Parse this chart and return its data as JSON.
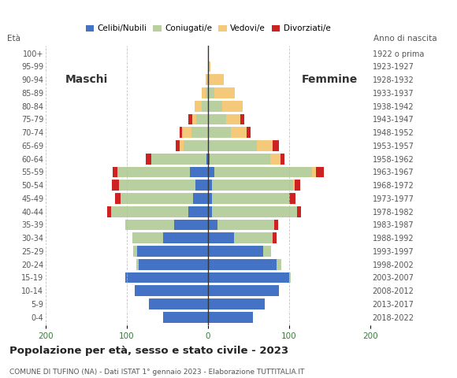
{
  "age_groups": [
    "0-4",
    "5-9",
    "10-14",
    "15-19",
    "20-24",
    "25-29",
    "30-34",
    "35-39",
    "40-44",
    "45-49",
    "50-54",
    "55-59",
    "60-64",
    "65-69",
    "70-74",
    "75-79",
    "80-84",
    "85-89",
    "90-94",
    "95-99",
    "100+"
  ],
  "birth_years": [
    "2018-2022",
    "2013-2017",
    "2008-2012",
    "2003-2007",
    "1998-2002",
    "1993-1997",
    "1988-1992",
    "1983-1987",
    "1978-1982",
    "1973-1977",
    "1968-1972",
    "1963-1967",
    "1958-1962",
    "1953-1957",
    "1948-1952",
    "1943-1947",
    "1938-1942",
    "1933-1937",
    "1928-1932",
    "1923-1927",
    "1922 o prima"
  ],
  "male": {
    "celibi": [
      55,
      73,
      90,
      102,
      85,
      87,
      55,
      42,
      24,
      18,
      15,
      22,
      2,
      0,
      0,
      0,
      0,
      0,
      0,
      0,
      0
    ],
    "coniugati": [
      0,
      0,
      0,
      0,
      3,
      5,
      38,
      60,
      95,
      90,
      95,
      90,
      68,
      30,
      20,
      14,
      8,
      3,
      1,
      0,
      0
    ],
    "vedovi": [
      0,
      0,
      0,
      0,
      0,
      0,
      0,
      0,
      0,
      0,
      0,
      0,
      0,
      5,
      12,
      5,
      8,
      5,
      2,
      0,
      0
    ],
    "divorziati": [
      0,
      0,
      0,
      0,
      0,
      0,
      0,
      0,
      5,
      7,
      8,
      5,
      7,
      5,
      3,
      5,
      0,
      0,
      0,
      0,
      0
    ]
  },
  "female": {
    "celibi": [
      55,
      70,
      88,
      100,
      85,
      68,
      32,
      12,
      5,
      5,
      5,
      8,
      2,
      0,
      0,
      0,
      0,
      0,
      0,
      0,
      0
    ],
    "coniugati": [
      0,
      0,
      0,
      2,
      5,
      10,
      48,
      70,
      105,
      95,
      100,
      120,
      75,
      60,
      28,
      22,
      18,
      8,
      2,
      1,
      0
    ],
    "vedovi": [
      0,
      0,
      0,
      0,
      0,
      0,
      0,
      0,
      0,
      0,
      2,
      5,
      12,
      20,
      20,
      18,
      25,
      25,
      18,
      2,
      0
    ],
    "divorziati": [
      0,
      0,
      0,
      0,
      0,
      0,
      5,
      5,
      5,
      8,
      7,
      10,
      5,
      8,
      5,
      5,
      0,
      0,
      0,
      0,
      0
    ]
  },
  "colors": {
    "celibi": "#4472c4",
    "coniugati": "#b8cfa0",
    "vedovi": "#f5c97a",
    "divorziati": "#cc2222"
  },
  "title": "Popolazione per età, sesso e stato civile - 2023",
  "subtitle": "COMUNE DI TUFINO (NA) - Dati ISTAT 1° gennaio 2023 - Elaborazione TUTTITALIA.IT",
  "xlabel_left": "Maschi",
  "xlabel_right": "Femmine",
  "ylabel_left": "Età",
  "ylabel_right": "Anno di nascita",
  "xlim": 200,
  "legend_labels": [
    "Celibi/Nubili",
    "Coniugati/e",
    "Vedovi/e",
    "Divorziati/e"
  ],
  "background_color": "#ffffff",
  "grid_color": "#bbbbbb"
}
